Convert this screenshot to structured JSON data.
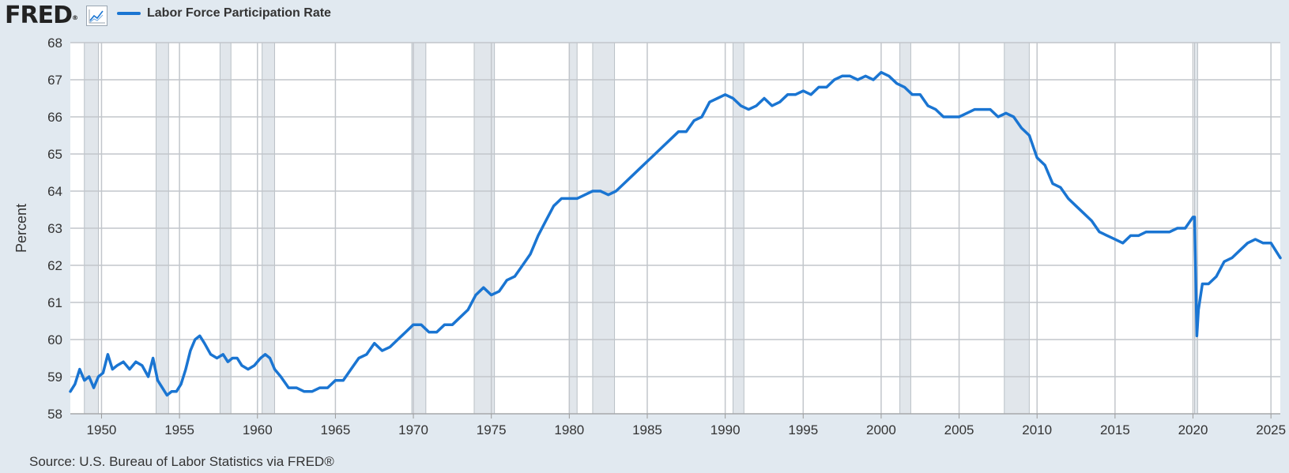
{
  "header": {
    "logo_text": "FRED",
    "logo_reg": "®",
    "legend_label": "Labor Force Participation Rate",
    "series_color": "#1a75d2",
    "icon": "line-graph-icon"
  },
  "source": "Source: U.S. Bureau of Labor Statistics via FRED®",
  "chart_data": {
    "type": "line",
    "title": "",
    "xlabel": "",
    "ylabel": "Percent",
    "xlim": [
      1948.0,
      2025.6
    ],
    "ylim": [
      58,
      68
    ],
    "grid": true,
    "legend_position": "top-left",
    "y_ticks": [
      58,
      59,
      60,
      61,
      62,
      63,
      64,
      65,
      66,
      67,
      68
    ],
    "x_ticks": [
      1950,
      1955,
      1960,
      1965,
      1970,
      1975,
      1980,
      1985,
      1990,
      1995,
      2000,
      2005,
      2010,
      2015,
      2020,
      2025
    ],
    "recessions": [
      [
        1948.9,
        1949.8
      ],
      [
        1953.5,
        1954.3
      ],
      [
        1957.6,
        1958.3
      ],
      [
        1960.3,
        1961.1
      ],
      [
        1969.9,
        1970.8
      ],
      [
        1973.9,
        1975.2
      ],
      [
        1980.0,
        1980.5
      ],
      [
        1981.5,
        1982.9
      ],
      [
        1990.5,
        1991.2
      ],
      [
        2001.2,
        2001.9
      ],
      [
        2007.9,
        2009.5
      ],
      [
        2020.1,
        2020.3
      ]
    ],
    "series": [
      {
        "x": [
          1948.0,
          1948.3,
          1948.6,
          1948.9,
          1949.2,
          1949.5,
          1949.8,
          1950.1,
          1950.4,
          1950.7,
          1951.0,
          1951.4,
          1951.8,
          1952.2,
          1952.6,
          1953.0,
          1953.3,
          1953.6,
          1953.9,
          1954.2,
          1954.5,
          1954.8,
          1955.1,
          1955.4,
          1955.7,
          1956.0,
          1956.3,
          1956.6,
          1957.0,
          1957.4,
          1957.8,
          1958.1,
          1958.4,
          1958.7,
          1959.0,
          1959.4,
          1959.8,
          1960.2,
          1960.5,
          1960.8,
          1961.1,
          1961.5,
          1962.0,
          1962.5,
          1963.0,
          1963.5,
          1964.0,
          1964.5,
          1965.0,
          1965.5,
          1966.0,
          1966.5,
          1967.0,
          1967.5,
          1968.0,
          1968.5,
          1969.0,
          1969.5,
          1970.0,
          1970.5,
          1971.0,
          1971.5,
          1972.0,
          1972.5,
          1973.0,
          1973.5,
          1974.0,
          1974.5,
          1975.0,
          1975.5,
          1976.0,
          1976.5,
          1977.0,
          1977.5,
          1978.0,
          1978.5,
          1979.0,
          1979.5,
          1980.0,
          1980.5,
          1981.0,
          1981.5,
          1982.0,
          1982.5,
          1983.0,
          1983.5,
          1984.0,
          1984.5,
          1985.0,
          1985.5,
          1986.0,
          1986.5,
          1987.0,
          1987.5,
          1988.0,
          1988.5,
          1989.0,
          1989.5,
          1990.0,
          1990.5,
          1991.0,
          1991.5,
          1992.0,
          1992.5,
          1993.0,
          1993.5,
          1994.0,
          1994.5,
          1995.0,
          1995.5,
          1996.0,
          1996.5,
          1997.0,
          1997.5,
          1998.0,
          1998.5,
          1999.0,
          1999.5,
          2000.0,
          2000.5,
          2001.0,
          2001.5,
          2002.0,
          2002.5,
          2003.0,
          2003.5,
          2004.0,
          2004.5,
          2005.0,
          2005.5,
          2006.0,
          2006.5,
          2007.0,
          2007.5,
          2008.0,
          2008.5,
          2009.0,
          2009.5,
          2010.0,
          2010.5,
          2011.0,
          2011.5,
          2012.0,
          2012.5,
          2013.0,
          2013.5,
          2014.0,
          2014.5,
          2015.0,
          2015.5,
          2016.0,
          2016.5,
          2017.0,
          2017.5,
          2018.0,
          2018.5,
          2019.0,
          2019.5,
          2020.0,
          2020.1,
          2020.25,
          2020.35,
          2020.6,
          2021.0,
          2021.5,
          2022.0,
          2022.5,
          2023.0,
          2023.5,
          2024.0,
          2024.5,
          2025.0,
          2025.3,
          2025.6
        ],
        "values": [
          58.6,
          58.8,
          59.2,
          58.9,
          59.0,
          58.7,
          59.0,
          59.1,
          59.6,
          59.2,
          59.3,
          59.4,
          59.2,
          59.4,
          59.3,
          59.0,
          59.5,
          58.9,
          58.7,
          58.5,
          58.6,
          58.6,
          58.8,
          59.2,
          59.7,
          60.0,
          60.1,
          59.9,
          59.6,
          59.5,
          59.6,
          59.4,
          59.5,
          59.5,
          59.3,
          59.2,
          59.3,
          59.5,
          59.6,
          59.5,
          59.2,
          59.0,
          58.7,
          58.7,
          58.6,
          58.6,
          58.7,
          58.7,
          58.9,
          58.9,
          59.2,
          59.5,
          59.6,
          59.9,
          59.7,
          59.8,
          60.0,
          60.2,
          60.4,
          60.4,
          60.2,
          60.2,
          60.4,
          60.4,
          60.6,
          60.8,
          61.2,
          61.4,
          61.2,
          61.3,
          61.6,
          61.7,
          62.0,
          62.3,
          62.8,
          63.2,
          63.6,
          63.8,
          63.8,
          63.8,
          63.9,
          64.0,
          64.0,
          63.9,
          64.0,
          64.2,
          64.4,
          64.6,
          64.8,
          65.0,
          65.2,
          65.4,
          65.6,
          65.6,
          65.9,
          66.0,
          66.4,
          66.5,
          66.6,
          66.5,
          66.3,
          66.2,
          66.3,
          66.5,
          66.3,
          66.4,
          66.6,
          66.6,
          66.7,
          66.6,
          66.8,
          66.8,
          67.0,
          67.1,
          67.1,
          67.0,
          67.1,
          67.0,
          67.2,
          67.1,
          66.9,
          66.8,
          66.6,
          66.6,
          66.3,
          66.2,
          66.0,
          66.0,
          66.0,
          66.1,
          66.2,
          66.2,
          66.2,
          66.0,
          66.1,
          66.0,
          65.7,
          65.5,
          64.9,
          64.7,
          64.2,
          64.1,
          63.8,
          63.6,
          63.4,
          63.2,
          62.9,
          62.8,
          62.7,
          62.6,
          62.8,
          62.8,
          62.9,
          62.9,
          62.9,
          62.9,
          63.0,
          63.0,
          63.3,
          63.3,
          60.1,
          60.8,
          61.5,
          61.5,
          61.7,
          62.1,
          62.2,
          62.4,
          62.6,
          62.7,
          62.6,
          62.6,
          62.4,
          62.2
        ]
      }
    ]
  }
}
